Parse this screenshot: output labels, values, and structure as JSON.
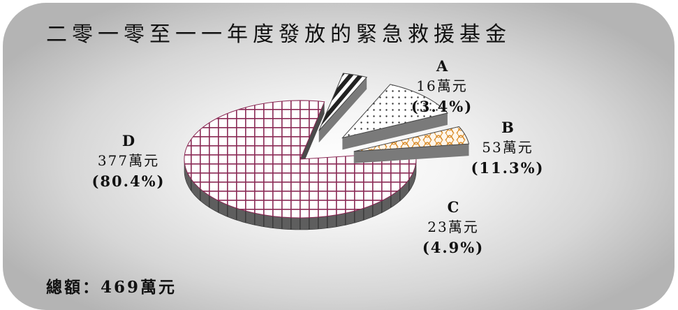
{
  "title": "二零一零至一一年度發放的緊急救援基金",
  "total_label": "總額：469萬元",
  "chart_data": {
    "type": "pie",
    "title": "二零一零至一一年度發放的緊急救援基金",
    "unit": "萬元",
    "total": 469,
    "style": "3d-exploded",
    "slices": [
      {
        "name": "A",
        "value": 16,
        "value_label": "16萬元",
        "percent": 3.4,
        "percent_label": "(3.4%)",
        "pattern": "diagonal-stripes",
        "color": "#222222"
      },
      {
        "name": "B",
        "value": 53,
        "value_label": "53萬元",
        "percent": 11.3,
        "percent_label": "(11.3%)",
        "pattern": "dots",
        "color": "#ffffff"
      },
      {
        "name": "C",
        "value": 23,
        "value_label": "23萬元",
        "percent": 4.9,
        "percent_label": "(4.9%)",
        "pattern": "orange-weave",
        "color": "#e0a24a"
      },
      {
        "name": "D",
        "value": 377,
        "value_label": "377萬元",
        "percent": 80.4,
        "percent_label": "(80.4%)",
        "pattern": "grid",
        "color": "#8a2a55"
      }
    ]
  }
}
